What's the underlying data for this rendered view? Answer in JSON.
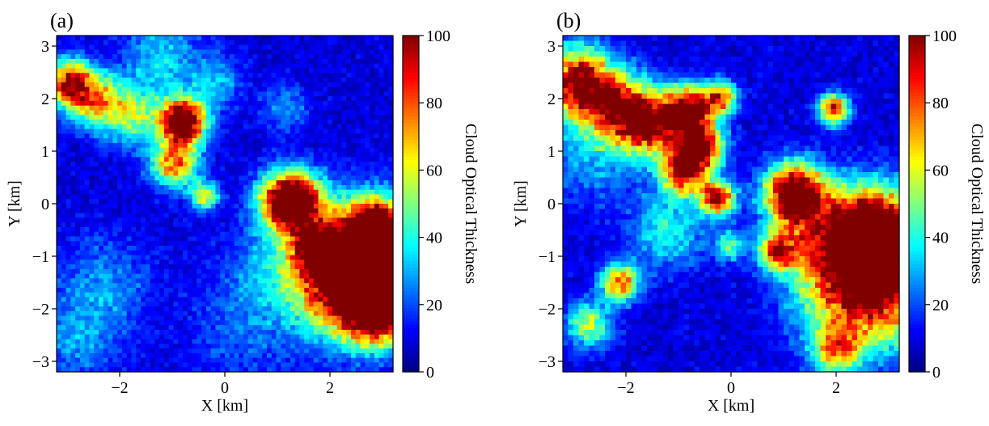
{
  "chart_data": [
    {
      "type": "heatmap",
      "panel_label": "(a)",
      "xlabel": "X [km]",
      "ylabel": "Y [km]",
      "xlim": [
        -3.2,
        3.2
      ],
      "ylim": [
        -3.2,
        3.2
      ],
      "xticks": [
        -2,
        0,
        2
      ],
      "yticks": [
        -3,
        -2,
        -1,
        0,
        1,
        2,
        3
      ],
      "xtick_labels": [
        "−2",
        "0",
        "2"
      ],
      "ytick_labels": [
        "−3",
        "−2",
        "−1",
        "0",
        "1",
        "2",
        "3"
      ],
      "colorbar": {
        "label": "Cloud Optical Thickness",
        "range": [
          0,
          100
        ],
        "ticks": [
          0,
          20,
          40,
          60,
          80,
          100
        ],
        "tick_labels": [
          "0",
          "20",
          "40",
          "60",
          "80",
          "100"
        ],
        "colormap": "jet"
      },
      "field_features": [
        {
          "x": -2.95,
          "y": 2.3,
          "sigma": 0.3,
          "value": 85
        },
        {
          "x": -2.45,
          "y": 1.95,
          "sigma": 0.35,
          "value": 55
        },
        {
          "x": -1.75,
          "y": 1.7,
          "sigma": 0.4,
          "value": 40
        },
        {
          "x": -0.8,
          "y": 1.55,
          "sigma": 0.3,
          "value": 120
        },
        {
          "x": -0.95,
          "y": 0.75,
          "sigma": 0.3,
          "value": 70
        },
        {
          "x": -0.4,
          "y": 0.15,
          "sigma": 0.18,
          "value": 55
        },
        {
          "x": -1.2,
          "y": 2.8,
          "sigma": 0.5,
          "value": 25
        },
        {
          "x": -0.2,
          "y": 2.3,
          "sigma": 0.35,
          "value": 22
        },
        {
          "x": 1.15,
          "y": 1.8,
          "sigma": 0.3,
          "value": 20
        },
        {
          "x": 1.25,
          "y": 0.05,
          "sigma": 0.38,
          "value": 130
        },
        {
          "x": 1.7,
          "y": -0.8,
          "sigma": 0.3,
          "value": 55
        },
        {
          "x": 2.5,
          "y": -1.3,
          "sigma": 0.75,
          "value": 150
        },
        {
          "x": 2.9,
          "y": -2.1,
          "sigma": 0.4,
          "value": 70
        },
        {
          "x": 2.9,
          "y": -0.4,
          "sigma": 0.35,
          "value": 80
        },
        {
          "x": 0.8,
          "y": -1.3,
          "sigma": 0.6,
          "value": 15
        },
        {
          "x": -2.3,
          "y": -1.5,
          "sigma": 0.6,
          "value": 18
        },
        {
          "x": -2.8,
          "y": -2.6,
          "sigma": 0.55,
          "value": 18
        },
        {
          "x": 0.3,
          "y": -2.5,
          "sigma": 0.7,
          "value": 12
        }
      ]
    },
    {
      "type": "heatmap",
      "panel_label": "(b)",
      "xlabel": "X [km]",
      "ylabel": "Y [km]",
      "xlim": [
        -3.2,
        3.2
      ],
      "ylim": [
        -3.2,
        3.2
      ],
      "xticks": [
        -2,
        0,
        2
      ],
      "yticks": [
        -3,
        -2,
        -1,
        0,
        1,
        2,
        3
      ],
      "xtick_labels": [
        "−2",
        "0",
        "2"
      ],
      "ytick_labels": [
        "−3",
        "−2",
        "−1",
        "0",
        "1",
        "2",
        "3"
      ],
      "colorbar": {
        "label": "Cloud Optical Thickness",
        "range": [
          0,
          100
        ],
        "ticks": [
          0,
          20,
          40,
          60,
          80,
          100
        ],
        "tick_labels": [
          "0",
          "20",
          "40",
          "60",
          "80",
          "100"
        ],
        "colormap": "jet"
      },
      "field_features": [
        {
          "x": -2.9,
          "y": 2.3,
          "sigma": 0.45,
          "value": 95
        },
        {
          "x": -2.1,
          "y": 1.8,
          "sigma": 0.45,
          "value": 70
        },
        {
          "x": -1.5,
          "y": 1.5,
          "sigma": 0.4,
          "value": 80
        },
        {
          "x": -0.8,
          "y": 1.8,
          "sigma": 0.3,
          "value": 95
        },
        {
          "x": -0.6,
          "y": 1.1,
          "sigma": 0.3,
          "value": 100
        },
        {
          "x": -0.9,
          "y": 0.6,
          "sigma": 0.3,
          "value": 85
        },
        {
          "x": -0.2,
          "y": 2.0,
          "sigma": 0.22,
          "value": 70
        },
        {
          "x": -0.25,
          "y": 0.1,
          "sigma": 0.22,
          "value": 90
        },
        {
          "x": 1.2,
          "y": 0.2,
          "sigma": 0.38,
          "value": 110
        },
        {
          "x": 1.95,
          "y": 1.8,
          "sigma": 0.2,
          "value": 80
        },
        {
          "x": 0.9,
          "y": -0.9,
          "sigma": 0.25,
          "value": 75
        },
        {
          "x": 2.6,
          "y": -1.5,
          "sigma": 0.8,
          "value": 110
        },
        {
          "x": 2.8,
          "y": -0.5,
          "sigma": 0.55,
          "value": 90
        },
        {
          "x": 1.8,
          "y": -0.5,
          "sigma": 0.6,
          "value": 45
        },
        {
          "x": -2.1,
          "y": -1.5,
          "sigma": 0.25,
          "value": 70
        },
        {
          "x": -2.7,
          "y": -2.3,
          "sigma": 0.3,
          "value": 45
        },
        {
          "x": -1.2,
          "y": -0.5,
          "sigma": 0.5,
          "value": 30
        },
        {
          "x": 2.0,
          "y": -2.8,
          "sigma": 0.3,
          "value": 55
        },
        {
          "x": 0.0,
          "y": -0.8,
          "sigma": 0.2,
          "value": 35
        },
        {
          "x": -2.6,
          "y": 0.9,
          "sigma": 0.6,
          "value": 20
        }
      ]
    }
  ]
}
